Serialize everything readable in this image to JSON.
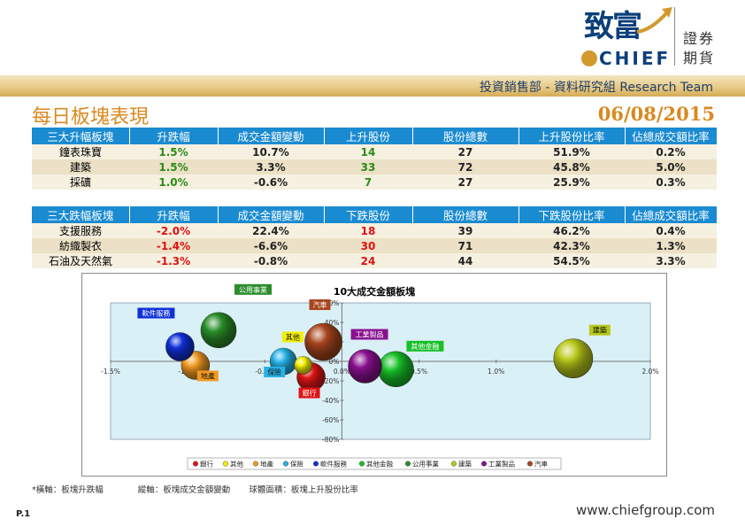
{
  "brand": {
    "name_chinese": "致富",
    "name_english": "CHIEF",
    "securities": "證券",
    "futures": "期貨",
    "brand_color": "#0b3f7a",
    "gold_color": "#d29a2e"
  },
  "header": {
    "department": "投資銷售部 - 資料研究組 Research Team"
  },
  "report": {
    "title": "每日板塊表現",
    "date": "06/08/2015"
  },
  "gainers_table": {
    "headers": [
      "三大升幅板塊",
      "升跌幅",
      "成交金額變動",
      "上升股份",
      "股份總數",
      "上升股份比率",
      "佔總成交額比率"
    ],
    "rows": [
      {
        "name": "鐘表珠寶",
        "change": "1.5%",
        "turnover_change": "10.7%",
        "count": "14",
        "total": "27",
        "ratio": "51.9%",
        "share": "0.2%"
      },
      {
        "name": "建築",
        "change": "1.5%",
        "turnover_change": "3.3%",
        "count": "33",
        "total": "72",
        "ratio": "45.8%",
        "share": "5.0%"
      },
      {
        "name": "採礦",
        "change": "1.0%",
        "turnover_change": "-0.6%",
        "count": "7",
        "total": "27",
        "ratio": "25.9%",
        "share": "0.3%"
      }
    ]
  },
  "losers_table": {
    "headers": [
      "三大跌幅板塊",
      "升跌幅",
      "成交金額變動",
      "下跌股份",
      "股份總數",
      "下跌股份比率",
      "佔總成交額比率"
    ],
    "rows": [
      {
        "name": "支援服務",
        "change": "-2.0%",
        "turnover_change": "22.4%",
        "count": "18",
        "total": "39",
        "ratio": "46.2%",
        "share": "0.4%"
      },
      {
        "name": "紡織製衣",
        "change": "-1.4%",
        "turnover_change": "-6.6%",
        "count": "30",
        "total": "71",
        "ratio": "42.3%",
        "share": "1.3%"
      },
      {
        "name": "石油及天然氣",
        "change": "-1.3%",
        "turnover_change": "-0.8%",
        "count": "24",
        "total": "44",
        "ratio": "54.5%",
        "share": "3.3%"
      }
    ]
  },
  "chart_data": {
    "type": "scatter",
    "title": "10大成交金額板塊",
    "xlim": [
      -1.5,
      2.0
    ],
    "ylim": [
      -80,
      60
    ],
    "x_ticks": [
      "-1.5%",
      "-1.0%",
      "-0.5%",
      "0.0%",
      "0.5%",
      "1.0%",
      "1.5%",
      "2.0%"
    ],
    "y_ticks": [
      "60%",
      "40%",
      "20%",
      "0%",
      "-20%",
      "-40%",
      "-60%",
      "-80%"
    ],
    "x_tick_values": [
      -1.5,
      -1.0,
      -0.5,
      0.0,
      0.5,
      1.0,
      1.5,
      2.0
    ],
    "y_tick_values": [
      60,
      40,
      20,
      0,
      -20,
      -40,
      -60,
      -80
    ],
    "plot_background": "#daf0f7",
    "legend_position": "bottom",
    "series": [
      {
        "name": "銀行",
        "x": -0.2,
        "y": -16,
        "color": "#e01414",
        "label_bg": "#e01414"
      },
      {
        "name": "其他",
        "x": -0.25,
        "y": -4,
        "color": "#f2ee00",
        "label_bg": "#f2ee00"
      },
      {
        "name": "地產",
        "x": -0.95,
        "y": -4,
        "color": "#f29a22",
        "label_bg": "#f29a22"
      },
      {
        "name": "保險",
        "x": -0.38,
        "y": 0,
        "color": "#27b2e6",
        "label_bg": "#27b2e6"
      },
      {
        "name": "軟件服務",
        "x": -1.05,
        "y": 15,
        "color": "#1030d8",
        "label_bg": "#1030d8"
      },
      {
        "name": "其他金融",
        "x": 0.35,
        "y": -8,
        "color": "#18c028",
        "label_bg": "#18c028"
      },
      {
        "name": "公用事業",
        "x": -0.8,
        "y": 32,
        "color": "#2a8d2a",
        "label_bg": "#2a8d2a"
      },
      {
        "name": "建築",
        "x": 1.5,
        "y": 3,
        "color": "#b8c81a",
        "label_bg": "#b8c81a"
      },
      {
        "name": "工業製品",
        "x": 0.15,
        "y": -5,
        "color": "#8a1090",
        "label_bg": "#8a1090"
      },
      {
        "name": "汽車",
        "x": -0.12,
        "y": 20,
        "color": "#a8461e",
        "label_bg": "#a8461e"
      }
    ]
  },
  "footnote": {
    "x_axis": "橫軸：板塊升跌幅",
    "y_axis": "縱軸：板塊成交金額變動",
    "bubble": "球體面積：板塊上升股份比率"
  },
  "footer": {
    "page": "P.1",
    "website": "www.chiefgroup.com"
  }
}
